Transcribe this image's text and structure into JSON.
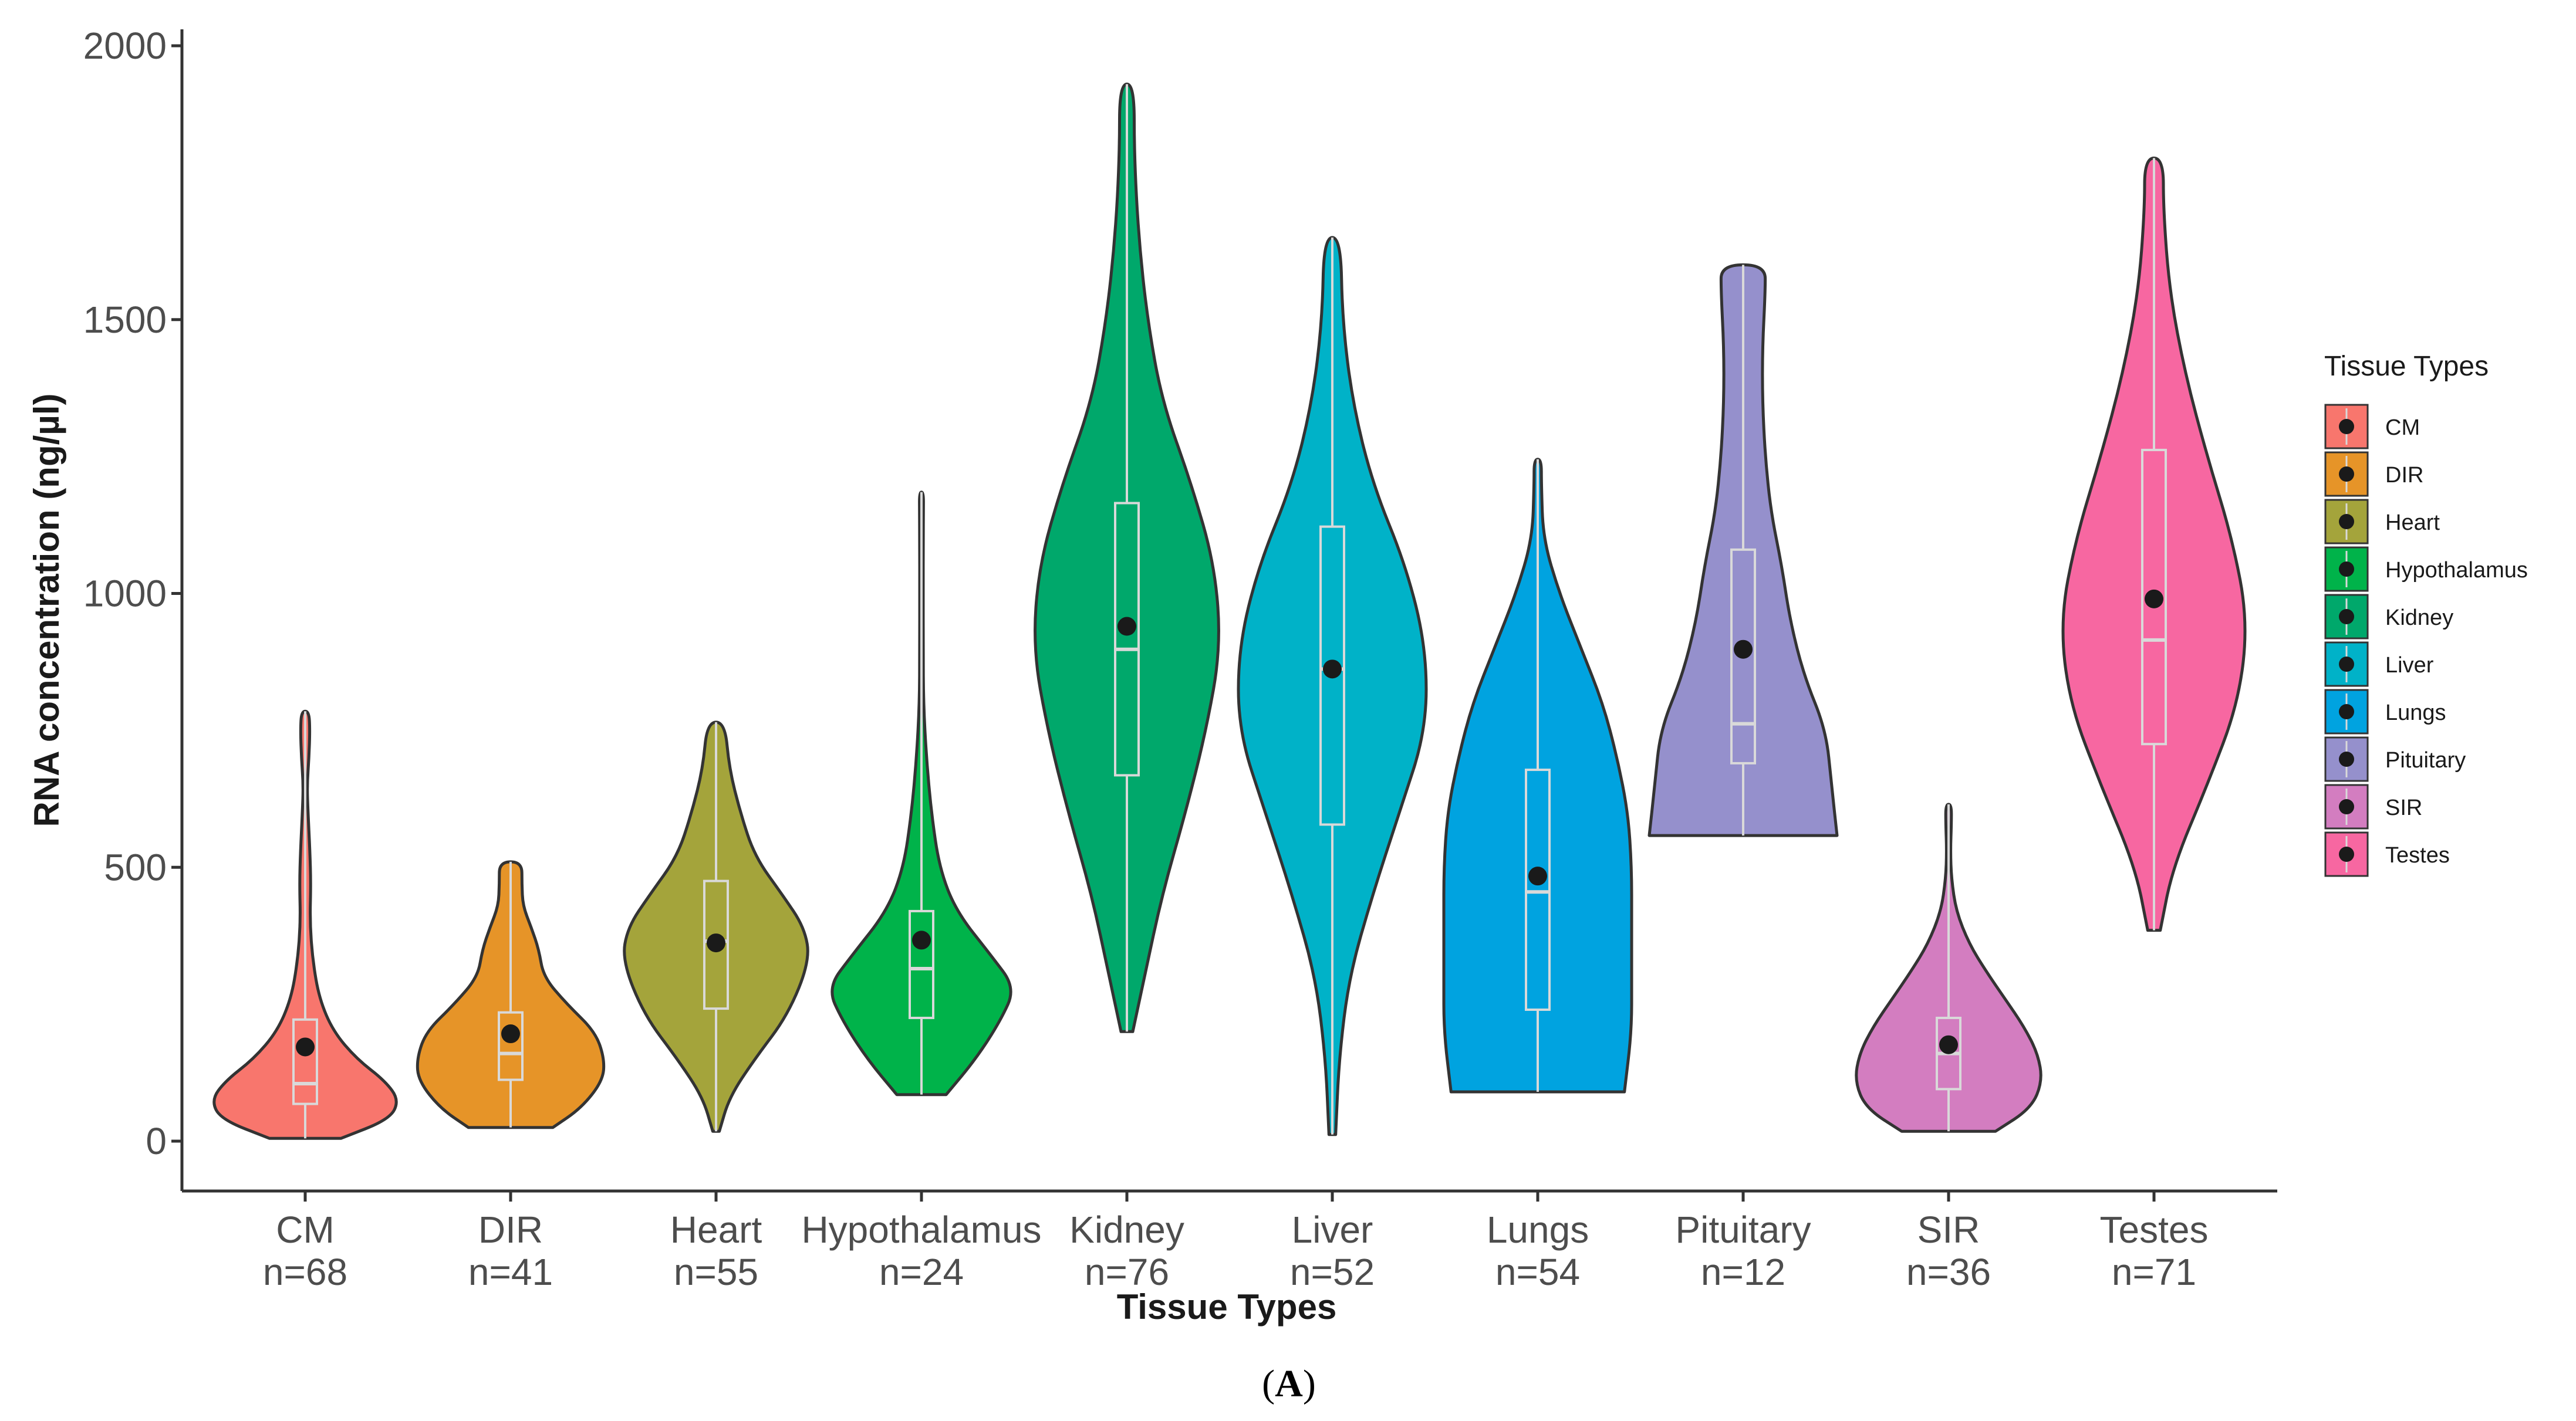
{
  "chart_data": {
    "type": "violin",
    "panel_label": "A",
    "xlabel": "Tissue Types",
    "ylabel": "RNA concentration (ng/µl)",
    "ylim": [
      -90,
      2030
    ],
    "yticks": [
      0,
      500,
      1000,
      1500,
      2000
    ],
    "legend": {
      "title": "Tissue Types",
      "position": "right"
    },
    "series": [
      {
        "name": "CM",
        "n_label": "n=68",
        "color": "#F8766D",
        "min": 5,
        "max": 785,
        "q1": 68,
        "median": 105,
        "q3": 222,
        "mean": 172,
        "density": [
          [
            5,
            0.38
          ],
          [
            40,
            0.9
          ],
          [
            75,
            1.0
          ],
          [
            110,
            0.85
          ],
          [
            150,
            0.55
          ],
          [
            200,
            0.3
          ],
          [
            260,
            0.15
          ],
          [
            330,
            0.08
          ],
          [
            400,
            0.05
          ],
          [
            470,
            0.06
          ],
          [
            530,
            0.05
          ],
          [
            600,
            0.03
          ],
          [
            650,
            0.02
          ],
          [
            700,
            0.04
          ],
          [
            750,
            0.05
          ],
          [
            785,
            0.04
          ]
        ]
      },
      {
        "name": "DIR",
        "n_label": "n=41",
        "color": "#E69428",
        "min": 25,
        "max": 510,
        "q1": 112,
        "median": 160,
        "q3": 235,
        "mean": 196,
        "density": [
          [
            25,
            0.45
          ],
          [
            60,
            0.75
          ],
          [
            110,
            0.98
          ],
          [
            150,
            1.0
          ],
          [
            200,
            0.9
          ],
          [
            250,
            0.6
          ],
          [
            300,
            0.35
          ],
          [
            350,
            0.3
          ],
          [
            390,
            0.22
          ],
          [
            430,
            0.13
          ],
          [
            470,
            0.12
          ],
          [
            510,
            0.12
          ]
        ]
      },
      {
        "name": "Heart",
        "n_label": "n=55",
        "color": "#A4A43B",
        "min": 18,
        "max": 765,
        "q1": 242,
        "median": 365,
        "q3": 475,
        "mean": 362,
        "density": [
          [
            18,
            0.03
          ],
          [
            80,
            0.12
          ],
          [
            150,
            0.35
          ],
          [
            230,
            0.65
          ],
          [
            330,
            0.85
          ],
          [
            390,
            0.8
          ],
          [
            450,
            0.6
          ],
          [
            520,
            0.35
          ],
          [
            600,
            0.22
          ],
          [
            680,
            0.12
          ],
          [
            765,
            0.08
          ]
        ]
      },
      {
        "name": "Hypothalamus",
        "n_label": "n=24",
        "color": "#00B34A",
        "min": 85,
        "max": 1185,
        "q1": 225,
        "median": 315,
        "q3": 420,
        "mean": 367,
        "density": [
          [
            85,
            0.25
          ],
          [
            150,
            0.55
          ],
          [
            220,
            0.8
          ],
          [
            280,
            0.95
          ],
          [
            340,
            0.7
          ],
          [
            420,
            0.35
          ],
          [
            500,
            0.18
          ],
          [
            600,
            0.1
          ],
          [
            700,
            0.05
          ],
          [
            800,
            0.02
          ],
          [
            900,
            0.01
          ],
          [
            1000,
            0.008
          ],
          [
            1100,
            0.01
          ],
          [
            1150,
            0.02
          ],
          [
            1185,
            0.02
          ]
        ]
      },
      {
        "name": "Kidney",
        "n_label": "n=76",
        "color": "#00A86B",
        "min": 200,
        "max": 1930,
        "q1": 668,
        "median": 898,
        "q3": 1165,
        "mean": 940,
        "density": [
          [
            200,
            0.02
          ],
          [
            300,
            0.06
          ],
          [
            450,
            0.12
          ],
          [
            600,
            0.2
          ],
          [
            750,
            0.27
          ],
          [
            900,
            0.32
          ],
          [
            1050,
            0.3
          ],
          [
            1200,
            0.22
          ],
          [
            1350,
            0.12
          ],
          [
            1500,
            0.07
          ],
          [
            1650,
            0.04
          ],
          [
            1800,
            0.025
          ],
          [
            1930,
            0.025
          ]
        ]
      },
      {
        "name": "Liver",
        "n_label": "n=52",
        "color": "#00B2C8",
        "min": 12,
        "max": 1650,
        "q1": 578,
        "median": 862,
        "q3": 1122,
        "mean": 862,
        "density": [
          [
            12,
            0.01
          ],
          [
            150,
            0.02
          ],
          [
            300,
            0.05
          ],
          [
            450,
            0.12
          ],
          [
            600,
            0.2
          ],
          [
            750,
            0.28
          ],
          [
            900,
            0.28
          ],
          [
            1050,
            0.22
          ],
          [
            1200,
            0.12
          ],
          [
            1350,
            0.06
          ],
          [
            1500,
            0.03
          ],
          [
            1650,
            0.025
          ]
        ]
      },
      {
        "name": "Lungs",
        "n_label": "n=54",
        "color": "#00A3E0",
        "min": 90,
        "max": 1245,
        "q1": 240,
        "median": 455,
        "q3": 678,
        "mean": 484,
        "density": [
          [
            90,
            0.24
          ],
          [
            200,
            0.26
          ],
          [
            300,
            0.26
          ],
          [
            400,
            0.26
          ],
          [
            500,
            0.26
          ],
          [
            600,
            0.25
          ],
          [
            700,
            0.22
          ],
          [
            800,
            0.18
          ],
          [
            900,
            0.12
          ],
          [
            1000,
            0.06
          ],
          [
            1100,
            0.015
          ],
          [
            1200,
            0.01
          ],
          [
            1245,
            0.01
          ]
        ]
      },
      {
        "name": "Pituitary",
        "n_label": "n=12",
        "color": "#9590CC",
        "min": 558,
        "max": 1600,
        "q1": 690,
        "median": 762,
        "q3": 1080,
        "mean": 898,
        "density": [
          [
            558,
            0.34
          ],
          [
            650,
            0.32
          ],
          [
            750,
            0.3
          ],
          [
            850,
            0.22
          ],
          [
            950,
            0.17
          ],
          [
            1050,
            0.14
          ],
          [
            1150,
            0.1
          ],
          [
            1250,
            0.08
          ],
          [
            1350,
            0.07
          ],
          [
            1450,
            0.07
          ],
          [
            1550,
            0.08
          ],
          [
            1600,
            0.08
          ]
        ]
      },
      {
        "name": "SIR",
        "n_label": "n=36",
        "color": "#D37DC0",
        "min": 18,
        "max": 615,
        "q1": 95,
        "median": 160,
        "q3": 225,
        "mean": 176,
        "density": [
          [
            18,
            0.5
          ],
          [
            60,
            0.88
          ],
          [
            110,
            1.0
          ],
          [
            160,
            0.95
          ],
          [
            210,
            0.8
          ],
          [
            260,
            0.6
          ],
          [
            310,
            0.4
          ],
          [
            360,
            0.22
          ],
          [
            420,
            0.08
          ],
          [
            480,
            0.03
          ],
          [
            530,
            0.02
          ],
          [
            580,
            0.03
          ],
          [
            615,
            0.03
          ]
        ]
      },
      {
        "name": "Testes",
        "n_label": "n=71",
        "color": "#F767A1",
        "min": 385,
        "max": 1795,
        "q1": 725,
        "median": 915,
        "q3": 1262,
        "mean": 990,
        "density": [
          [
            385,
            0.02
          ],
          [
            500,
            0.06
          ],
          [
            650,
            0.17
          ],
          [
            800,
            0.27
          ],
          [
            950,
            0.3
          ],
          [
            1100,
            0.25
          ],
          [
            1250,
            0.17
          ],
          [
            1400,
            0.1
          ],
          [
            1550,
            0.05
          ],
          [
            1700,
            0.03
          ],
          [
            1795,
            0.03
          ]
        ]
      }
    ]
  }
}
